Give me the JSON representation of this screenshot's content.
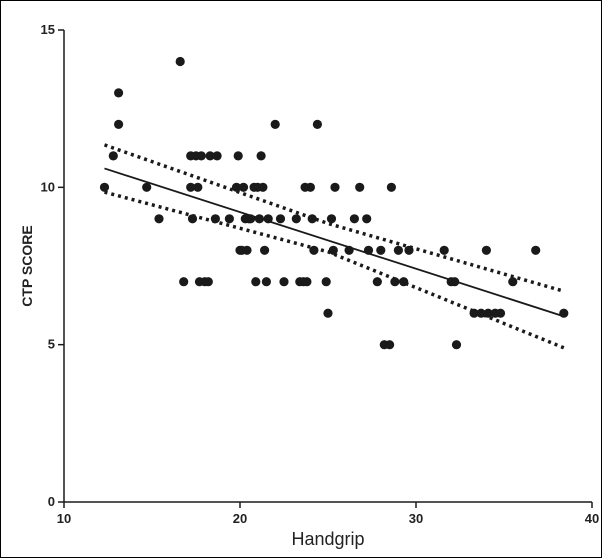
{
  "chart_data": {
    "type": "scatter",
    "title": "",
    "xlabel": "Handgrip",
    "ylabel": "CTP SCORE",
    "xlim": [
      10,
      40
    ],
    "ylim": [
      0,
      15
    ],
    "x_ticks": [
      "10",
      "20",
      "30",
      "40"
    ],
    "y_ticks": [
      "0",
      "5",
      "10",
      "15"
    ],
    "grid": false,
    "legend": "none",
    "point_color": "#1a1a1a",
    "line_color": "#1a1a1a",
    "points": [
      {
        "x": 12.3,
        "y": 10
      },
      {
        "x": 12.8,
        "y": 11
      },
      {
        "x": 13.1,
        "y": 13
      },
      {
        "x": 13.1,
        "y": 12
      },
      {
        "x": 14.7,
        "y": 10
      },
      {
        "x": 15.4,
        "y": 9
      },
      {
        "x": 16.6,
        "y": 14
      },
      {
        "x": 16.8,
        "y": 7
      },
      {
        "x": 17.2,
        "y": 11
      },
      {
        "x": 17.2,
        "y": 10
      },
      {
        "x": 17.3,
        "y": 9
      },
      {
        "x": 17.5,
        "y": 11
      },
      {
        "x": 17.6,
        "y": 10
      },
      {
        "x": 17.7,
        "y": 7
      },
      {
        "x": 17.8,
        "y": 11
      },
      {
        "x": 18.0,
        "y": 7
      },
      {
        "x": 18.2,
        "y": 7
      },
      {
        "x": 18.3,
        "y": 11
      },
      {
        "x": 18.6,
        "y": 9
      },
      {
        "x": 18.7,
        "y": 11
      },
      {
        "x": 19.4,
        "y": 9
      },
      {
        "x": 19.8,
        "y": 10
      },
      {
        "x": 19.9,
        "y": 11
      },
      {
        "x": 20.0,
        "y": 8
      },
      {
        "x": 20.1,
        "y": 8
      },
      {
        "x": 20.2,
        "y": 10
      },
      {
        "x": 20.3,
        "y": 9
      },
      {
        "x": 20.4,
        "y": 8
      },
      {
        "x": 20.5,
        "y": 9
      },
      {
        "x": 20.6,
        "y": 9
      },
      {
        "x": 20.8,
        "y": 10
      },
      {
        "x": 20.9,
        "y": 7
      },
      {
        "x": 21.0,
        "y": 10
      },
      {
        "x": 21.1,
        "y": 9
      },
      {
        "x": 21.2,
        "y": 11
      },
      {
        "x": 21.3,
        "y": 10
      },
      {
        "x": 21.4,
        "y": 8
      },
      {
        "x": 21.5,
        "y": 7
      },
      {
        "x": 21.6,
        "y": 9
      },
      {
        "x": 22.0,
        "y": 12
      },
      {
        "x": 22.3,
        "y": 9
      },
      {
        "x": 22.5,
        "y": 7
      },
      {
        "x": 23.2,
        "y": 9
      },
      {
        "x": 23.4,
        "y": 7
      },
      {
        "x": 23.6,
        "y": 7
      },
      {
        "x": 23.7,
        "y": 10
      },
      {
        "x": 23.8,
        "y": 7
      },
      {
        "x": 24.0,
        "y": 10
      },
      {
        "x": 24.1,
        "y": 9
      },
      {
        "x": 24.2,
        "y": 8
      },
      {
        "x": 24.4,
        "y": 12
      },
      {
        "x": 24.9,
        "y": 7
      },
      {
        "x": 25.0,
        "y": 6
      },
      {
        "x": 25.2,
        "y": 9
      },
      {
        "x": 25.3,
        "y": 8
      },
      {
        "x": 25.4,
        "y": 10
      },
      {
        "x": 26.2,
        "y": 8
      },
      {
        "x": 26.5,
        "y": 9
      },
      {
        "x": 26.8,
        "y": 10
      },
      {
        "x": 27.2,
        "y": 9
      },
      {
        "x": 27.3,
        "y": 8
      },
      {
        "x": 27.8,
        "y": 7
      },
      {
        "x": 28.0,
        "y": 8
      },
      {
        "x": 28.2,
        "y": 5
      },
      {
        "x": 28.5,
        "y": 5
      },
      {
        "x": 28.6,
        "y": 10
      },
      {
        "x": 28.8,
        "y": 7
      },
      {
        "x": 29.0,
        "y": 8
      },
      {
        "x": 29.3,
        "y": 7
      },
      {
        "x": 29.6,
        "y": 8
      },
      {
        "x": 31.6,
        "y": 8
      },
      {
        "x": 32.0,
        "y": 7
      },
      {
        "x": 32.2,
        "y": 7
      },
      {
        "x": 32.3,
        "y": 5
      },
      {
        "x": 33.3,
        "y": 6
      },
      {
        "x": 33.7,
        "y": 6
      },
      {
        "x": 34.0,
        "y": 8
      },
      {
        "x": 34.1,
        "y": 6
      },
      {
        "x": 34.5,
        "y": 6
      },
      {
        "x": 34.8,
        "y": 6
      },
      {
        "x": 35.5,
        "y": 7
      },
      {
        "x": 36.8,
        "y": 8
      },
      {
        "x": 38.4,
        "y": 6
      }
    ],
    "regression_line": {
      "x": [
        12.3,
        38.4
      ],
      "y": [
        10.6,
        5.9
      ]
    },
    "confidence_band_upper": {
      "x": [
        12.3,
        25.0,
        38.4
      ],
      "y": [
        11.35,
        8.85,
        6.7
      ]
    },
    "confidence_band_lower": {
      "x": [
        12.3,
        25.0,
        38.4
      ],
      "y": [
        9.85,
        7.95,
        4.9
      ]
    }
  }
}
